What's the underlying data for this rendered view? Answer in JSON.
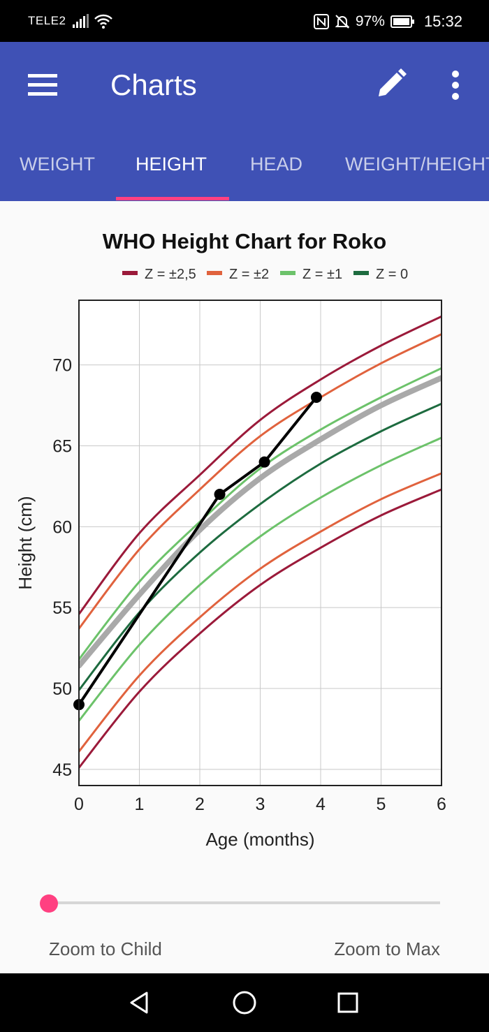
{
  "status_bar": {
    "carrier": "TELE2",
    "battery": "97%",
    "time": "15:32"
  },
  "app_bar": {
    "title": "Charts",
    "icons": {
      "menu": "menu-icon",
      "edit": "pencil-icon",
      "more": "more-vert-icon"
    }
  },
  "tabs": [
    {
      "label": "WEIGHT",
      "active": false
    },
    {
      "label": "HEIGHT",
      "active": true
    },
    {
      "label": "HEAD",
      "active": false
    },
    {
      "label": "WEIGHT/HEIGHT",
      "active": false
    }
  ],
  "colors": {
    "primary": "#3f51b5",
    "accent": "#ff4081",
    "z25": "#9b1a3a",
    "z2": "#e0623d",
    "z1": "#6cc26a",
    "z0": "#1d6b3f",
    "median": "#a9a9a9",
    "child": "#000000"
  },
  "chart_data": {
    "type": "line",
    "title": "WHO Height Chart for Roko",
    "xlabel": "Age (months)",
    "ylabel": "Height (cm)",
    "xlim": [
      0,
      6
    ],
    "ylim": [
      44,
      74
    ],
    "xticks": [
      0,
      1,
      2,
      3,
      4,
      5,
      6
    ],
    "yticks": [
      45,
      50,
      55,
      60,
      65,
      70
    ],
    "grid": true,
    "legend_position": "top",
    "legend": [
      "Z = ±2,5",
      "Z = ±2",
      "Z = ±1",
      "Z = 0"
    ],
    "x": [
      0,
      1,
      2,
      3,
      4,
      5,
      6
    ],
    "series": [
      {
        "group": "Z = ±2,5",
        "color_key": "z25",
        "values": [
          54.6,
          59.6,
          63.2,
          66.6,
          69.1,
          71.2,
          73.0
        ]
      },
      {
        "group": "Z = ±2",
        "color_key": "z2",
        "values": [
          53.7,
          58.6,
          62.3,
          65.6,
          68.0,
          70.1,
          71.9
        ]
      },
      {
        "group": "Z = ±1",
        "color_key": "z1",
        "values": [
          51.8,
          56.6,
          60.3,
          63.6,
          66.0,
          68.0,
          69.8
        ]
      },
      {
        "group": "median",
        "color_key": "median",
        "values": [
          51.4,
          55.8,
          59.8,
          63.0,
          65.4,
          67.5,
          69.2
        ],
        "width": 8
      },
      {
        "group": "Z = 0",
        "color_key": "z0",
        "values": [
          49.9,
          54.7,
          58.4,
          61.4,
          63.9,
          65.9,
          67.6
        ]
      },
      {
        "group": "Z = ±1",
        "color_key": "z1",
        "values": [
          48.0,
          52.7,
          56.4,
          59.4,
          61.8,
          63.8,
          65.5
        ]
      },
      {
        "group": "Z = ±2",
        "color_key": "z2",
        "values": [
          46.1,
          50.8,
          54.4,
          57.4,
          59.7,
          61.7,
          63.3
        ]
      },
      {
        "group": "Z = ±2,5",
        "color_key": "z25",
        "values": [
          45.1,
          49.8,
          53.4,
          56.4,
          58.7,
          60.7,
          62.3
        ]
      }
    ],
    "child_points": [
      {
        "x": 0.0,
        "y": 49.0
      },
      {
        "x": 2.33,
        "y": 62.0
      },
      {
        "x": 3.07,
        "y": 64.0
      },
      {
        "x": 3.93,
        "y": 68.0
      }
    ]
  },
  "zoom": {
    "level": 0.0,
    "child_label": "Zoom to Child",
    "max_label": "Zoom to Max"
  },
  "nav_bar": {
    "icons": [
      "back-icon",
      "home-icon",
      "recents-icon"
    ]
  }
}
